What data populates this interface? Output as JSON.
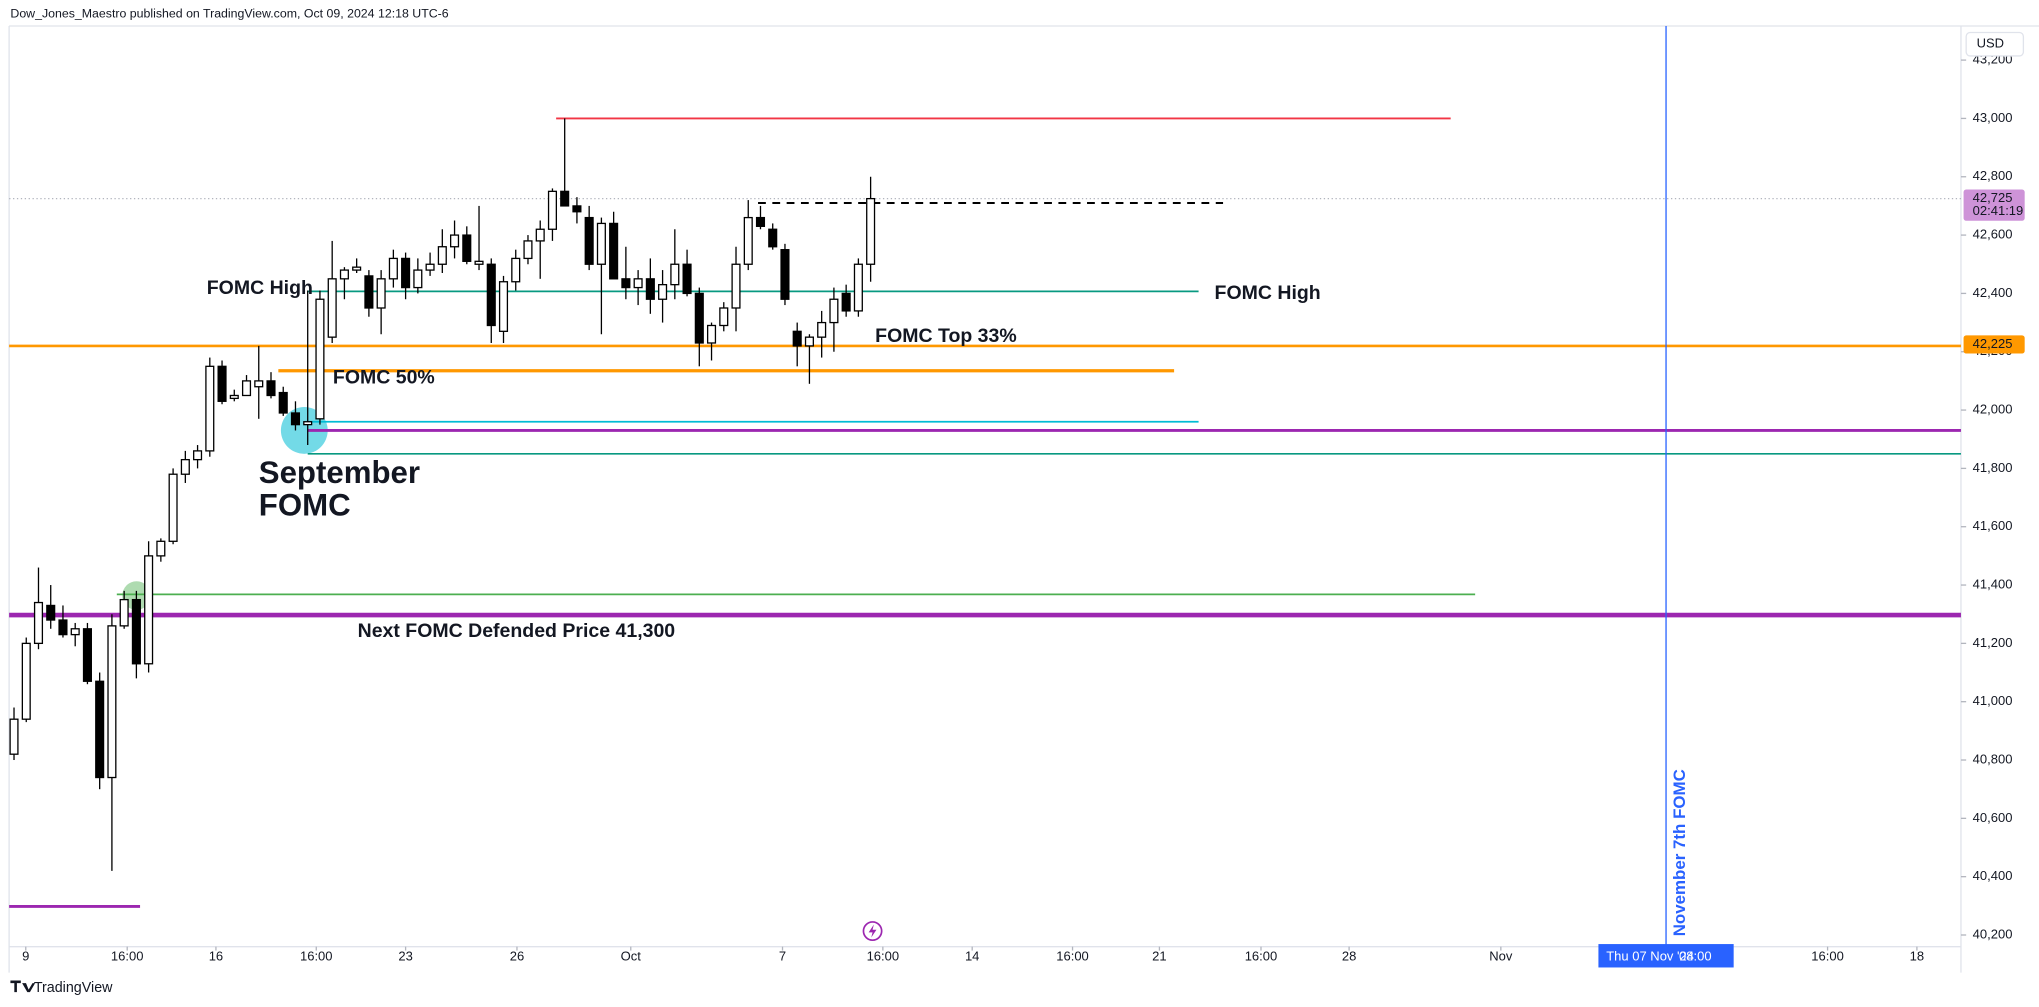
{
  "chart_data": {
    "type": "candlestick",
    "header": "Dow_Jones_Maestro published on TradingView.com, Oct 09, 2024 12:18 UTC-6",
    "currency": "USD",
    "brand": "TradingView",
    "ylim": [
      40160,
      43308
    ],
    "yticks": [
      {
        "value": 40200,
        "label": "40,200"
      },
      {
        "value": 40400,
        "label": "40,400"
      },
      {
        "value": 40600,
        "label": "40,600"
      },
      {
        "value": 40800,
        "label": "40,800"
      },
      {
        "value": 41000,
        "label": "41,000"
      },
      {
        "value": 41200,
        "label": "41,200"
      },
      {
        "value": 41400,
        "label": "41,400"
      },
      {
        "value": 41600,
        "label": "41,600"
      },
      {
        "value": 41800,
        "label": "41,800"
      },
      {
        "value": 42000,
        "label": "42,000"
      },
      {
        "value": 42200,
        "label": "42,200"
      },
      {
        "value": 42400,
        "label": "42,400"
      },
      {
        "value": 42600,
        "label": "42,600"
      },
      {
        "value": 42800,
        "label": "42,800"
      },
      {
        "value": 43000,
        "label": "43,000"
      },
      {
        "value": 43200,
        "label": "43,200"
      }
    ],
    "xlim": [
      -0.4,
      159.1
    ],
    "xticks": [
      {
        "value": 0.96,
        "label": "9"
      },
      {
        "value": 9.25,
        "label": "16:00"
      },
      {
        "value": 16.5,
        "label": "16"
      },
      {
        "value": 24.7,
        "label": "16:00"
      },
      {
        "value": 32,
        "label": "23"
      },
      {
        "value": 41.1,
        "label": "26"
      },
      {
        "value": 50.4,
        "label": "Oct"
      },
      {
        "value": 62.8,
        "label": "7"
      },
      {
        "value": 71,
        "label": "16:00"
      },
      {
        "value": 78.3,
        "label": "14"
      },
      {
        "value": 86.5,
        "label": "16:00"
      },
      {
        "value": 93.6,
        "label": "21"
      },
      {
        "value": 101.9,
        "label": "16:00"
      },
      {
        "value": 109.1,
        "label": "28"
      },
      {
        "value": 121.5,
        "label": "Nov"
      },
      {
        "value": 148.2,
        "label": "16:00"
      },
      {
        "value": 155.5,
        "label": "18"
      }
    ],
    "open": [
      40820,
      40940,
      41200,
      41330,
      41280,
      41230,
      41250,
      41070,
      40740,
      41260,
      41350,
      41130,
      41500,
      41550,
      41780,
      41830,
      41860,
      42150,
      42040,
      42050,
      42080,
      42100,
      42060,
      41990,
      41950,
      41970,
      42250,
      42450,
      42480,
      42460,
      42350,
      42450,
      42520,
      42420,
      42480,
      42500,
      42560,
      42600,
      42500,
      42500,
      42270,
      42440,
      42520,
      42580,
      42620,
      42750,
      42700,
      42660,
      42500,
      42640,
      42450,
      42420,
      42450,
      42380,
      42430,
      42500,
      42400,
      42230,
      42290,
      42350,
      42500,
      42660,
      42620,
      42550,
      42270,
      42220,
      42250,
      42300,
      42400,
      42340,
      42500
    ],
    "high": [
      40980,
      41220,
      41460,
      41400,
      41330,
      41270,
      41270,
      41100,
      41300,
      41380,
      41380,
      41550,
      41560,
      41800,
      41860,
      41880,
      42180,
      42170,
      42070,
      42120,
      42220,
      42130,
      42080,
      42030,
      42410,
      42410,
      42580,
      42490,
      42520,
      42480,
      42480,
      42550,
      42540,
      42520,
      42540,
      42620,
      42650,
      42630,
      42700,
      42520,
      42460,
      42550,
      42600,
      42650,
      42760,
      43000,
      42730,
      42700,
      42660,
      42680,
      42560,
      42480,
      42520,
      42480,
      42620,
      42550,
      42420,
      42300,
      42370,
      42560,
      42720,
      42700,
      42640,
      42570,
      42300,
      42260,
      42340,
      42420,
      42430,
      42520,
      42800
    ],
    "low": [
      40800,
      40930,
      41180,
      41250,
      41220,
      41190,
      41060,
      40700,
      40420,
      41250,
      41080,
      41100,
      41480,
      41540,
      41750,
      41800,
      41840,
      42020,
      42030,
      42050,
      41970,
      42040,
      41980,
      41930,
      41880,
      41950,
      42230,
      42380,
      42470,
      42320,
      42260,
      42420,
      42380,
      42400,
      42460,
      42470,
      42520,
      42500,
      42480,
      42230,
      42230,
      42410,
      42500,
      42450,
      42580,
      42720,
      42640,
      42480,
      42260,
      42450,
      42380,
      42360,
      42330,
      42300,
      42380,
      42390,
      42150,
      42170,
      42270,
      42270,
      42480,
      42620,
      42550,
      42360,
      42150,
      42090,
      42180,
      42200,
      42320,
      42320,
      42440
    ],
    "close": [
      40940,
      41200,
      41340,
      41280,
      41230,
      41250,
      41070,
      40740,
      41260,
      41350,
      41130,
      41500,
      41550,
      41780,
      41830,
      41860,
      42150,
      42030,
      42050,
      42100,
      42100,
      42050,
      41990,
      41950,
      41960,
      42380,
      42450,
      42480,
      42490,
      42350,
      42450,
      42520,
      42420,
      42480,
      42500,
      42560,
      42600,
      42510,
      42510,
      42290,
      42440,
      42520,
      42580,
      42620,
      42750,
      42700,
      42680,
      42500,
      42640,
      42450,
      42420,
      42450,
      42380,
      42430,
      42500,
      42400,
      42230,
      42290,
      42350,
      42500,
      42660,
      42630,
      42560,
      42380,
      42220,
      42250,
      42300,
      42380,
      42340,
      42500,
      42725
    ],
    "levels": [
      {
        "value": 43000,
        "from": 44.3,
        "to": 117.4,
        "color": "#f23645",
        "width": 1.5
      },
      {
        "value": 42710,
        "from": 60.8,
        "to": 98.8,
        "color": "#000000",
        "width": 1.5,
        "dash": true
      },
      {
        "value": 42407,
        "from": 24,
        "to": 96.8,
        "color": "#089981",
        "width": 1.3
      },
      {
        "value": 42220,
        "from": -0.4,
        "to": 159.1,
        "color": "#ff9800",
        "width": 2
      },
      {
        "value": 42135,
        "from": 21.6,
        "to": 94.8,
        "color": "#ff9800",
        "width": 2.5
      },
      {
        "value": 41960,
        "from": 24,
        "to": 96.8,
        "color": "#00bcd4",
        "width": 1.3
      },
      {
        "value": 41930,
        "from": 24,
        "to": 159.1,
        "color": "#9c27b0",
        "width": 2.2
      },
      {
        "value": 41850,
        "from": 24,
        "to": 159.1,
        "color": "#089981",
        "width": 1.3
      },
      {
        "value": 41368,
        "from": 8.4,
        "to": 119.4,
        "color": "#4caf50",
        "width": 1.3
      },
      {
        "value": 41297,
        "from": -0.4,
        "to": 159.1,
        "color": "#9c27b0",
        "width": 3.5
      },
      {
        "value": 40298,
        "from": -0.4,
        "to": 10.3,
        "color": "#9c27b0",
        "width": 2.2
      }
    ],
    "last_price": {
      "value": 42725,
      "label": "42,725",
      "countdown": "02:41:19"
    },
    "level_label": {
      "value": 42225,
      "label": "42,225"
    },
    "event": {
      "x": 135,
      "label": "November 7th FOMC",
      "date_label": "Thu 07 Nov '24",
      "time_label": "08:00"
    },
    "annotations": [
      {
        "text": "FOMC High"
      },
      {
        "text": "FOMC High"
      },
      {
        "text": "FOMC Top 33%"
      },
      {
        "text": "FOMC 50%"
      },
      {
        "lines": [
          "September",
          "FOMC"
        ]
      },
      {
        "text": "Next FOMC Defended Price 41,300"
      }
    ]
  }
}
